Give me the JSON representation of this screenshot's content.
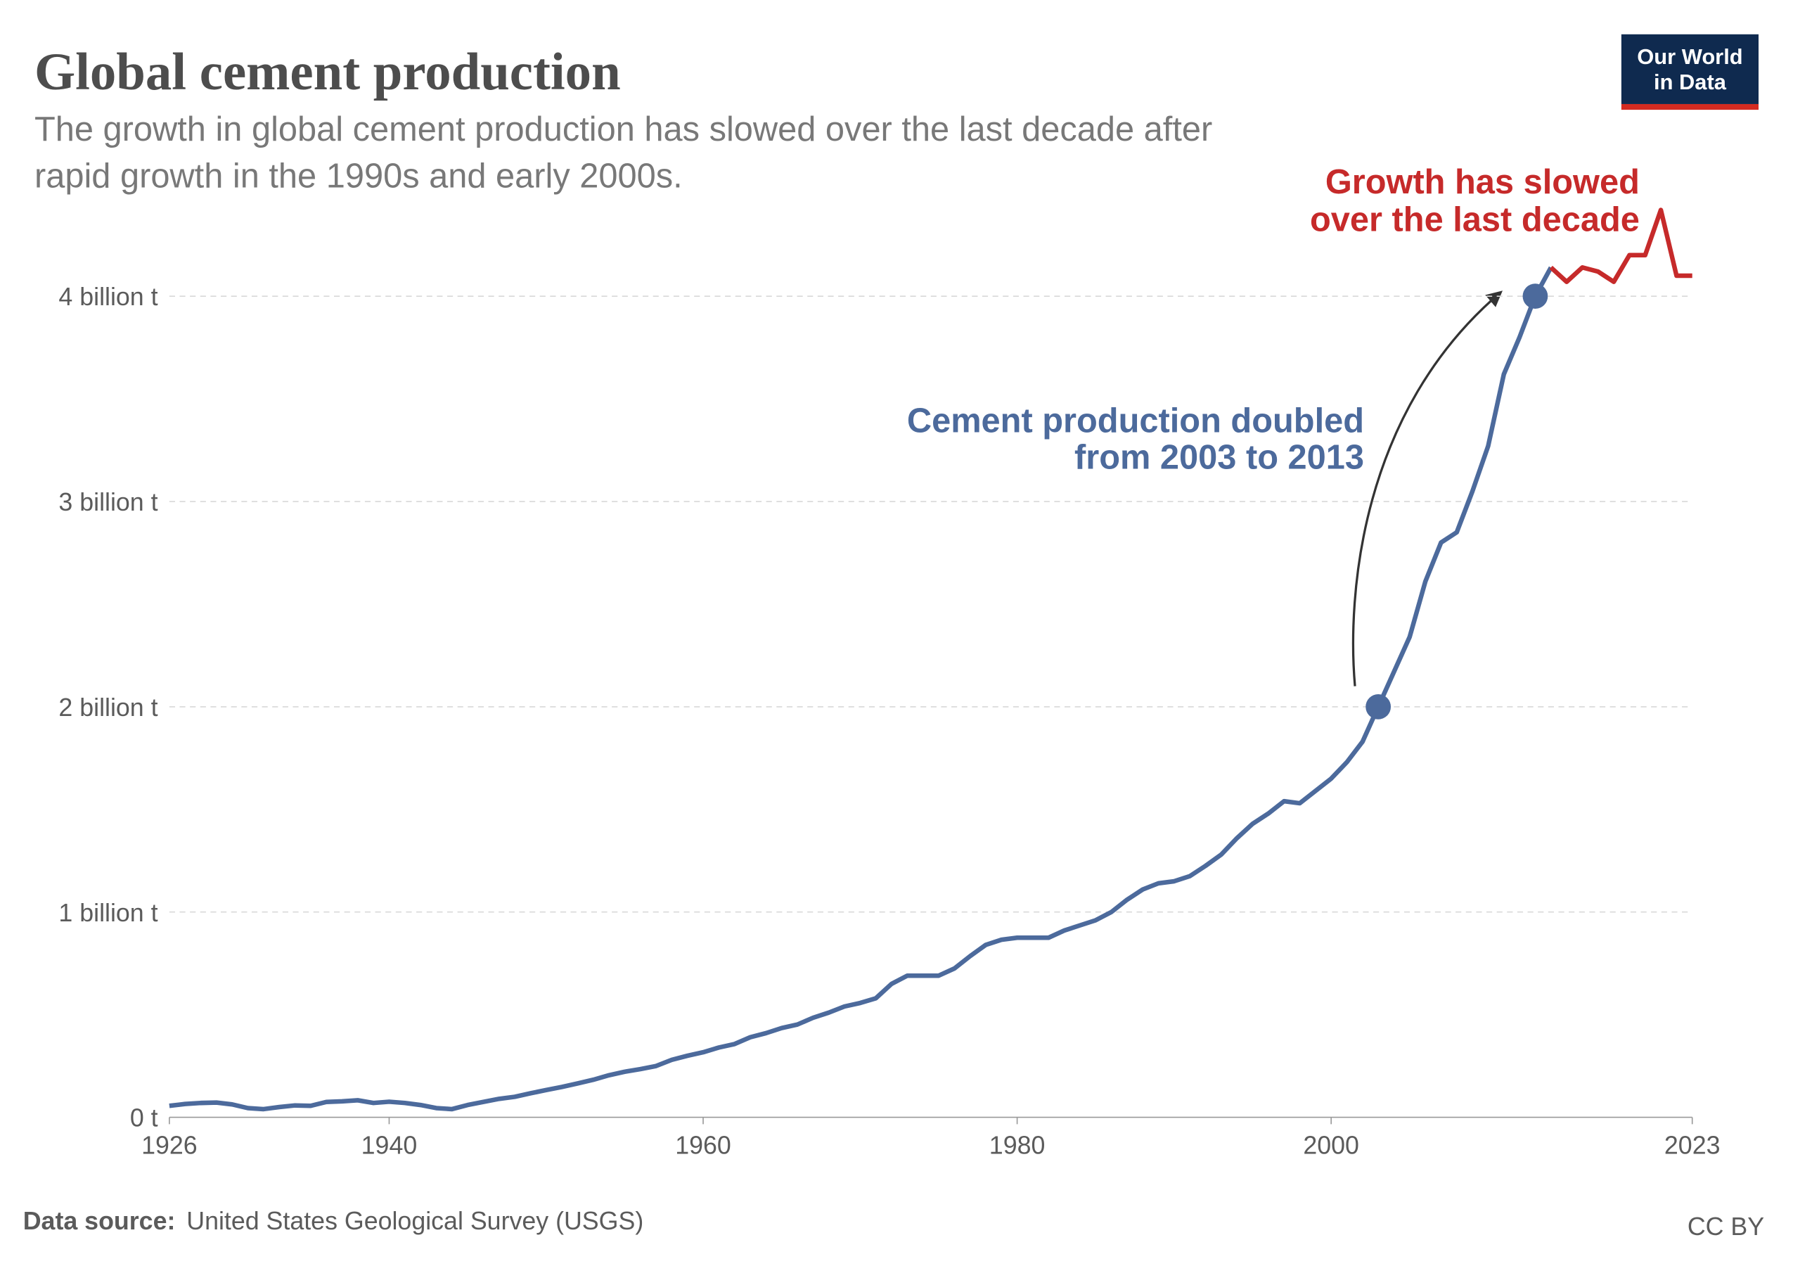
{
  "chart_data": {
    "type": "line",
    "title": "Global cement production",
    "subtitle": [
      "The growth in global cement production has slowed over the last decade after",
      "rapid growth in the 1990s and early 2000s."
    ],
    "logo": [
      "Our World",
      "in Data"
    ],
    "annotations": [
      {
        "text": [
          "Cement production doubled",
          "from 2003 to 2013"
        ]
      },
      {
        "text": [
          "Growth has slowed",
          "over the last decade"
        ]
      }
    ],
    "source_label": "Data source:",
    "source": "United States Geological Survey (USGS)",
    "license": "CC BY",
    "x": [
      1926,
      1927,
      1928,
      1929,
      1930,
      1931,
      1932,
      1933,
      1934,
      1935,
      1936,
      1937,
      1938,
      1939,
      1940,
      1941,
      1942,
      1943,
      1944,
      1945,
      1946,
      1947,
      1948,
      1949,
      1950,
      1951,
      1952,
      1953,
      1954,
      1955,
      1956,
      1957,
      1958,
      1959,
      1960,
      1961,
      1962,
      1963,
      1964,
      1965,
      1966,
      1967,
      1968,
      1969,
      1970,
      1971,
      1972,
      1973,
      1974,
      1975,
      1976,
      1977,
      1978,
      1979,
      1980,
      1981,
      1982,
      1983,
      1984,
      1985,
      1986,
      1987,
      1988,
      1989,
      1990,
      1991,
      1992,
      1993,
      1994,
      1995,
      1996,
      1997,
      1998,
      1999,
      2000,
      2001,
      2002,
      2003,
      2004,
      2005,
      2006,
      2007,
      2008,
      2009,
      2010,
      2011,
      2012,
      2013,
      2014,
      2015,
      2016,
      2017,
      2018,
      2019,
      2020,
      2021,
      2022,
      2023
    ],
    "series": [
      {
        "color": "#4c6a9c",
        "values": [
          0.056,
          0.065,
          0.07,
          0.072,
          0.063,
          0.045,
          0.04,
          0.05,
          0.058,
          0.056,
          0.075,
          0.078,
          0.083,
          0.07,
          0.076,
          0.07,
          0.06,
          0.045,
          0.04,
          0.06,
          0.075,
          0.09,
          0.1,
          0.117,
          0.133,
          0.148,
          0.165,
          0.183,
          0.205,
          0.222,
          0.235,
          0.25,
          0.28,
          0.3,
          0.317,
          0.34,
          0.357,
          0.39,
          0.41,
          0.435,
          0.452,
          0.485,
          0.51,
          0.54,
          0.557,
          0.58,
          0.65,
          0.69,
          0.69,
          0.69,
          0.725,
          0.785,
          0.84,
          0.865,
          0.875,
          0.875,
          0.875,
          0.91,
          0.935,
          0.96,
          1.0,
          1.06,
          1.11,
          1.14,
          1.15,
          1.175,
          1.225,
          1.28,
          1.36,
          1.43,
          1.48,
          1.54,
          1.53,
          1.59,
          1.65,
          1.73,
          1.83,
          2.0,
          2.17,
          2.34,
          2.61,
          2.8,
          2.85,
          3.05,
          3.27,
          3.62,
          3.8,
          4.0,
          4.14,
          null,
          null,
          null,
          null,
          null,
          null,
          null,
          null,
          null
        ]
      },
      {
        "color": "#c62a2a",
        "values": [
          null,
          null,
          null,
          null,
          null,
          null,
          null,
          null,
          null,
          null,
          null,
          null,
          null,
          null,
          null,
          null,
          null,
          null,
          null,
          null,
          null,
          null,
          null,
          null,
          null,
          null,
          null,
          null,
          null,
          null,
          null,
          null,
          null,
          null,
          null,
          null,
          null,
          null,
          null,
          null,
          null,
          null,
          null,
          null,
          null,
          null,
          null,
          null,
          null,
          null,
          null,
          null,
          null,
          null,
          null,
          null,
          null,
          null,
          null,
          null,
          null,
          null,
          null,
          null,
          null,
          null,
          null,
          null,
          null,
          null,
          null,
          null,
          null,
          null,
          null,
          null,
          null,
          null,
          null,
          null,
          null,
          null,
          null,
          null,
          null,
          null,
          null,
          null,
          4.14,
          4.07,
          4.14,
          4.12,
          4.07,
          4.2,
          4.2,
          4.42,
          4.1,
          4.1
        ]
      }
    ],
    "xlim": [
      1926,
      2023
    ],
    "xticks": [
      1926,
      1940,
      1960,
      1980,
      2000,
      2023
    ],
    "ylim": [
      0,
      4.5
    ],
    "yticks": [
      {
        "value": 0,
        "label": "0 t"
      },
      {
        "value": 1,
        "label": "1 billion t"
      },
      {
        "value": 2,
        "label": "2 billion t"
      },
      {
        "value": 3,
        "label": "3 billion t"
      },
      {
        "value": 4,
        "label": "4 billion t"
      }
    ],
    "grid": true
  }
}
